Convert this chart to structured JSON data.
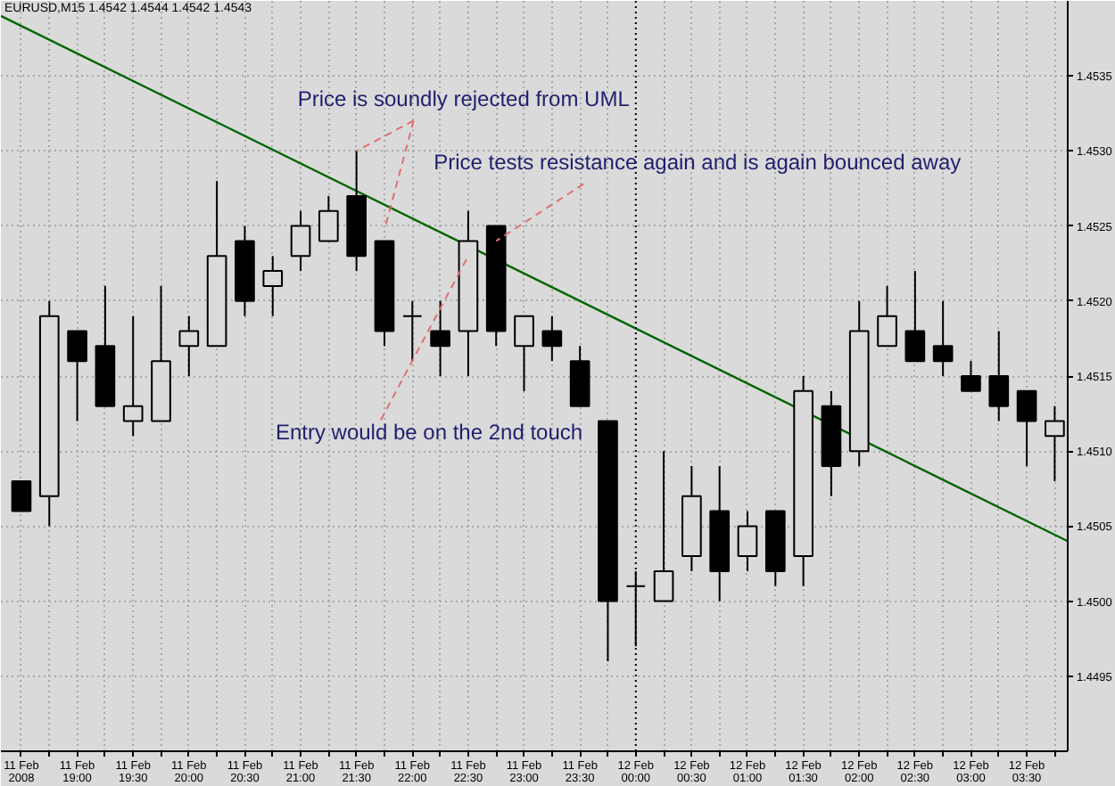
{
  "chart_data": {
    "type": "candlestick",
    "title": "EURUSD,M15 1.4542 1.4544 1.4542 1.4543",
    "color": "#000000",
    "x": [
      "2008-02-11T18:30",
      "2008-02-11T18:45",
      "2008-02-11T19:00",
      "2008-02-11T19:15",
      "2008-02-11T19:30",
      "2008-02-11T19:45",
      "2008-02-11T20:00",
      "2008-02-11T20:15",
      "2008-02-11T20:30",
      "2008-02-11T20:45",
      "2008-02-11T21:00",
      "2008-02-11T21:15",
      "2008-02-11T21:30",
      "2008-02-11T21:45",
      "2008-02-11T22:00",
      "2008-02-11T22:15",
      "2008-02-11T22:30",
      "2008-02-11T22:45",
      "2008-02-11T23:00",
      "2008-02-11T23:15",
      "2008-02-11T23:30",
      "2008-02-11T23:45",
      "2008-02-12T00:00",
      "2008-02-12T00:15",
      "2008-02-12T00:30",
      "2008-02-12T00:45",
      "2008-02-12T01:00",
      "2008-02-12T01:15",
      "2008-02-12T01:30",
      "2008-02-12T01:45",
      "2008-02-12T02:00",
      "2008-02-12T02:15",
      "2008-02-12T02:30",
      "2008-02-12T02:45",
      "2008-02-12T03:00",
      "2008-02-12T03:15",
      "2008-02-12T03:30",
      "2008-02-12T03:45"
    ],
    "ohlc": [
      [
        1.4508,
        1.4508,
        1.4506,
        1.4506
      ],
      [
        1.4507,
        1.452,
        1.4505,
        1.4519
      ],
      [
        1.4518,
        1.4518,
        1.4512,
        1.4516
      ],
      [
        1.4517,
        1.4521,
        1.4513,
        1.4513
      ],
      [
        1.4512,
        1.4519,
        1.4511,
        1.4513
      ],
      [
        1.4512,
        1.4521,
        1.4512,
        1.4516
      ],
      [
        1.4517,
        1.4519,
        1.4515,
        1.4518
      ],
      [
        1.4517,
        1.4528,
        1.4517,
        1.4523
      ],
      [
        1.4524,
        1.4525,
        1.4519,
        1.452
      ],
      [
        1.4521,
        1.4523,
        1.4519,
        1.4522
      ],
      [
        1.4523,
        1.4526,
        1.4522,
        1.4525
      ],
      [
        1.4524,
        1.4527,
        1.4524,
        1.4526
      ],
      [
        1.4527,
        1.453,
        1.4522,
        1.4523
      ],
      [
        1.4524,
        1.4524,
        1.4517,
        1.4518
      ],
      [
        1.4519,
        1.452,
        1.4516,
        1.4519
      ],
      [
        1.4518,
        1.452,
        1.4515,
        1.4517
      ],
      [
        1.4518,
        1.4526,
        1.4515,
        1.4524
      ],
      [
        1.4525,
        1.4525,
        1.4517,
        1.4518
      ],
      [
        1.4517,
        1.4519,
        1.4514,
        1.4519
      ],
      [
        1.4518,
        1.4519,
        1.4516,
        1.4517
      ],
      [
        1.4516,
        1.4517,
        1.4513,
        1.4513
      ],
      [
        1.4512,
        1.4512,
        1.4496,
        1.45
      ],
      [
        1.4501,
        1.4502,
        1.4497,
        1.4501
      ],
      [
        1.45,
        1.451,
        1.45,
        1.4502
      ],
      [
        1.4503,
        1.4509,
        1.4502,
        1.4507
      ],
      [
        1.4506,
        1.4509,
        1.45,
        1.4502
      ],
      [
        1.4503,
        1.4506,
        1.4502,
        1.4505
      ],
      [
        1.4506,
        1.4506,
        1.4501,
        1.4502
      ],
      [
        1.4503,
        1.4515,
        1.4501,
        1.4514
      ],
      [
        1.4513,
        1.4514,
        1.4507,
        1.4509
      ],
      [
        1.451,
        1.452,
        1.4509,
        1.4518
      ],
      [
        1.4517,
        1.4521,
        1.4517,
        1.4519
      ],
      [
        1.4518,
        1.4522,
        1.4516,
        1.4516
      ],
      [
        1.4517,
        1.452,
        1.4515,
        1.4516
      ],
      [
        1.4515,
        1.4516,
        1.4514,
        1.4514
      ],
      [
        1.4515,
        1.4518,
        1.4512,
        1.4513
      ],
      [
        1.4514,
        1.4514,
        1.4509,
        1.4512
      ],
      [
        1.4511,
        1.4513,
        1.4508,
        1.4512
      ]
    ],
    "series": [
      {
        "type": "line",
        "color": "#006400",
        "x": [
          "2008-02-11T18:19",
          "2008-02-12T03:52"
        ],
        "values": [
          1.4539,
          1.4504
        ]
      }
    ],
    "xlim": [
      "2008-02-11T18:19",
      "2008-02-12T03:52"
    ],
    "xticks": [
      {
        "value": "2008-02-11T18:30",
        "label": "11 Feb 2008"
      },
      {
        "value": "2008-02-11T18:45",
        "label": null
      },
      {
        "value": "2008-02-11T19:00",
        "label": "11 Feb 19:00"
      },
      {
        "value": "2008-02-11T19:15",
        "label": null
      },
      {
        "value": "2008-02-11T19:30",
        "label": "11 Feb 19:30"
      },
      {
        "value": "2008-02-11T19:45",
        "label": null
      },
      {
        "value": "2008-02-11T20:00",
        "label": "11 Feb 20:00"
      },
      {
        "value": "2008-02-11T20:15",
        "label": null
      },
      {
        "value": "2008-02-11T20:30",
        "label": "11 Feb 20:30"
      },
      {
        "value": "2008-02-11T20:45",
        "label": null
      },
      {
        "value": "2008-02-11T21:00",
        "label": "11 Feb 21:00"
      },
      {
        "value": "2008-02-11T21:15",
        "label": null
      },
      {
        "value": "2008-02-11T21:30",
        "label": "11 Feb 21:30"
      },
      {
        "value": "2008-02-11T21:45",
        "label": null
      },
      {
        "value": "2008-02-11T22:00",
        "label": "11 Feb 22:00"
      },
      {
        "value": "2008-02-11T22:15",
        "label": null
      },
      {
        "value": "2008-02-11T22:30",
        "label": "11 Feb 22:30"
      },
      {
        "value": "2008-02-11T22:45",
        "label": null
      },
      {
        "value": "2008-02-11T23:00",
        "label": "11 Feb 23:00"
      },
      {
        "value": "2008-02-11T23:15",
        "label": null
      },
      {
        "value": "2008-02-11T23:30",
        "label": "11 Feb 23:30"
      },
      {
        "value": "2008-02-11T23:45",
        "label": null
      },
      {
        "value": "2008-02-12T00:00",
        "label": "12 Feb 00:00"
      },
      {
        "value": "2008-02-12T00:15",
        "label": null
      },
      {
        "value": "2008-02-12T00:30",
        "label": "12 Feb 00:30"
      },
      {
        "value": "2008-02-12T00:45",
        "label": null
      },
      {
        "value": "2008-02-12T01:00",
        "label": "12 Feb 01:00"
      },
      {
        "value": "2008-02-12T01:15",
        "label": null
      },
      {
        "value": "2008-02-12T01:30",
        "label": "12 Feb 01:30"
      },
      {
        "value": "2008-02-12T01:45",
        "label": null
      },
      {
        "value": "2008-02-12T02:00",
        "label": "12 Feb 02:00"
      },
      {
        "value": "2008-02-12T02:15",
        "label": null
      },
      {
        "value": "2008-02-12T02:30",
        "label": "12 Feb 02:30"
      },
      {
        "value": "2008-02-12T02:45",
        "label": null
      },
      {
        "value": "2008-02-12T03:00",
        "label": "12 Feb 03:00"
      },
      {
        "value": "2008-02-12T03:15",
        "label": null
      },
      {
        "value": "2008-02-12T03:30",
        "label": "12 Feb 03:30"
      },
      {
        "value": "2008-02-12T03:45",
        "label": null
      }
    ],
    "ylim": [
      1.449,
      1.454
    ],
    "yticks": [
      1.4495,
      {
        "value": 1.45,
        "label": "1.4500"
      },
      1.4505,
      {
        "value": 1.451,
        "label": "1.4510"
      },
      1.4515,
      {
        "value": 1.452,
        "label": "1.4520"
      },
      1.4525,
      {
        "value": 1.453,
        "label": "1.4530"
      },
      1.4535
    ],
    "grid": true,
    "ref_lines": [
      {
        "axis": "x",
        "value": "2008-02-12T00:00",
        "color": "#000000",
        "line_style": "dotted"
      }
    ],
    "annotations": [
      {
        "text": "Price is soundly rejected from UML",
        "x": "2008-02-11T21:30",
        "y": 1.453
      },
      {
        "text": "Price tests resistance again and is again bounced away",
        "x": "2008-02-11T22:45",
        "y": 1.4524
      },
      {
        "text": "Entry would be on the 2nd touch",
        "x": "2008-02-11T22:30",
        "y": 1.4523
      }
    ]
  }
}
